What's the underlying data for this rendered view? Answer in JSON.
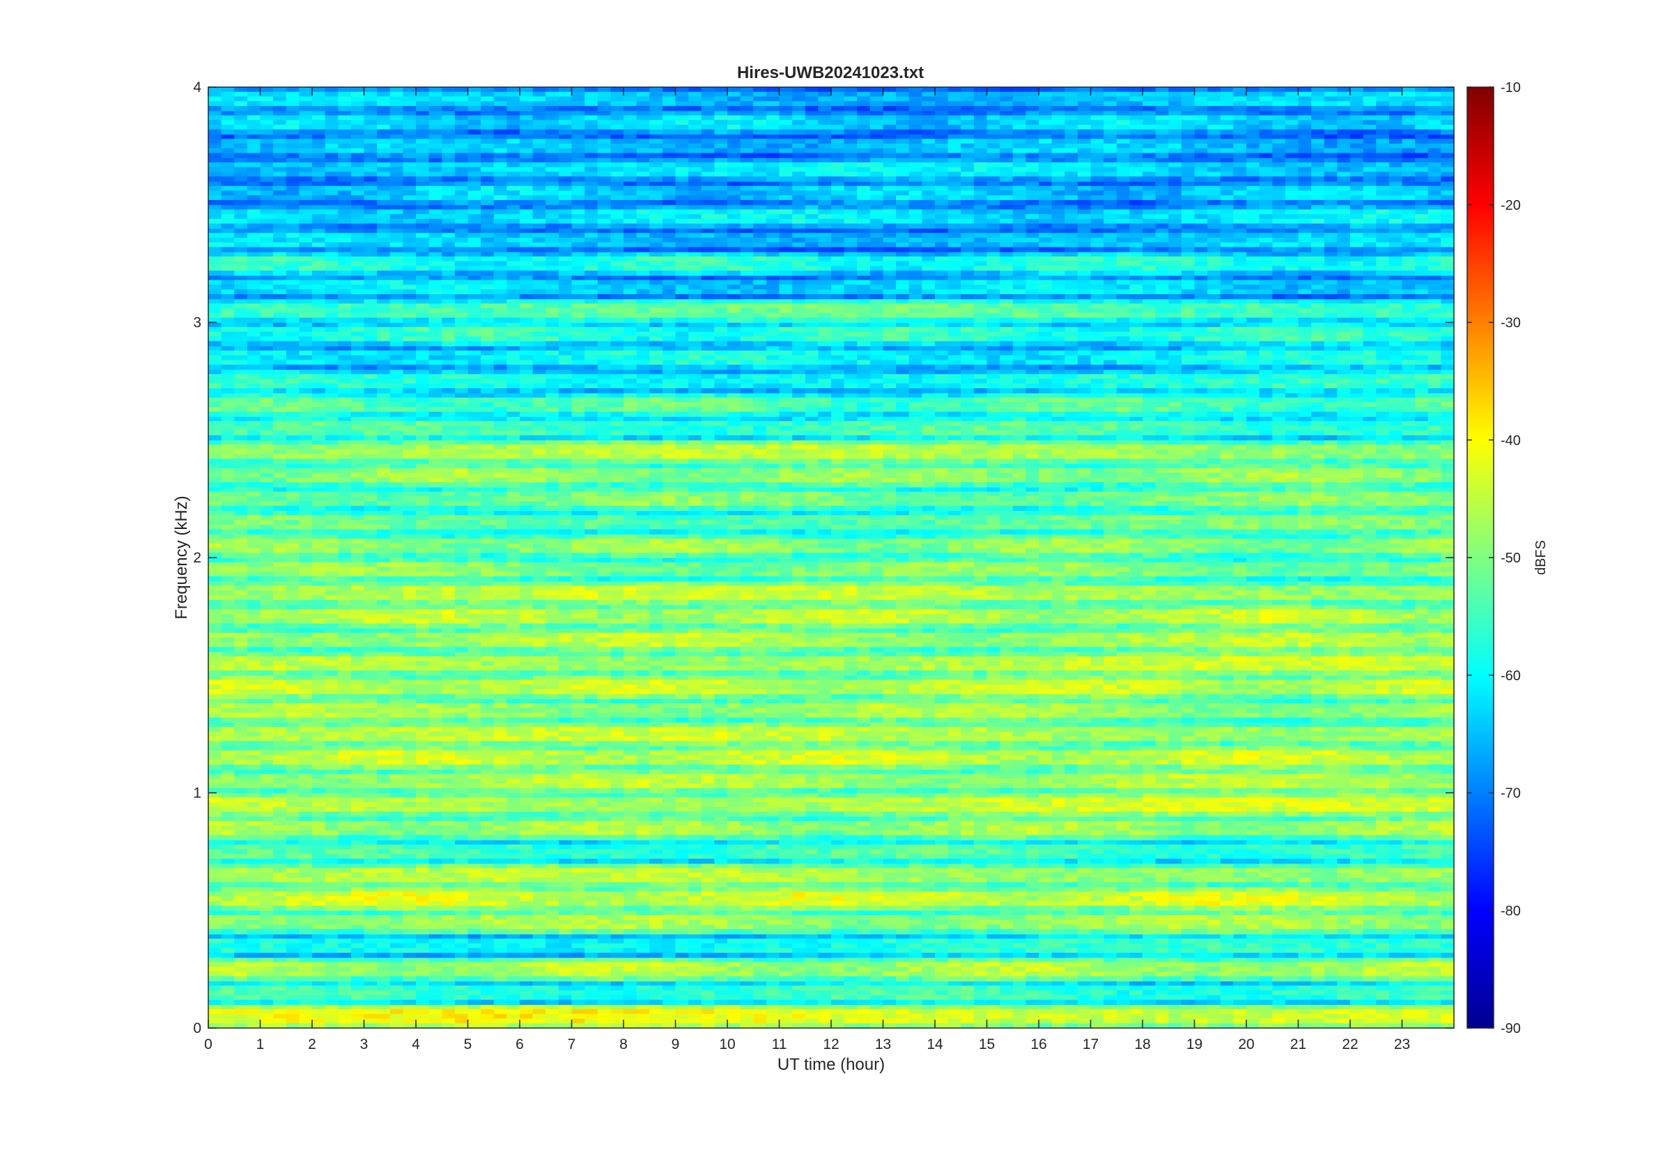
{
  "chart_data": {
    "type": "heatmap",
    "title": "Hires-UWB20241023.txt",
    "xlabel": "UT time (hour)",
    "ylabel": "Frequency (kHz)",
    "xlim": [
      0,
      24
    ],
    "ylim": [
      0,
      4
    ],
    "x_ticks": [
      0,
      1,
      2,
      3,
      4,
      5,
      6,
      7,
      8,
      9,
      10,
      11,
      12,
      13,
      14,
      15,
      16,
      17,
      18,
      19,
      20,
      21,
      22,
      23
    ],
    "y_ticks": [
      0,
      1,
      2,
      3,
      4
    ],
    "colorbar": {
      "label": "dBFS",
      "colormap": "jet",
      "clim": [
        -90,
        -10
      ],
      "ticks": [
        -90,
        -80,
        -70,
        -60,
        -50,
        -40,
        -30,
        -20,
        -10
      ]
    },
    "grid": false,
    "band_levels_dbfs": [
      {
        "freq_khz": 0.05,
        "level": -42
      },
      {
        "freq_khz": 0.15,
        "level": -56
      },
      {
        "freq_khz": 0.25,
        "level": -47
      },
      {
        "freq_khz": 0.35,
        "level": -58
      },
      {
        "freq_khz": 0.45,
        "level": -48
      },
      {
        "freq_khz": 0.55,
        "level": -44
      },
      {
        "freq_khz": 0.65,
        "level": -47
      },
      {
        "freq_khz": 0.75,
        "level": -55
      },
      {
        "freq_khz": 0.85,
        "level": -48
      },
      {
        "freq_khz": 0.95,
        "level": -45
      },
      {
        "freq_khz": 1.05,
        "level": -47
      },
      {
        "freq_khz": 1.15,
        "level": -45
      },
      {
        "freq_khz": 1.25,
        "level": -46
      },
      {
        "freq_khz": 1.35,
        "level": -48
      },
      {
        "freq_khz": 1.45,
        "level": -45
      },
      {
        "freq_khz": 1.55,
        "level": -46
      },
      {
        "freq_khz": 1.65,
        "level": -47
      },
      {
        "freq_khz": 1.75,
        "level": -46
      },
      {
        "freq_khz": 1.85,
        "level": -46
      },
      {
        "freq_khz": 1.95,
        "level": -50
      },
      {
        "freq_khz": 2.05,
        "level": -49
      },
      {
        "freq_khz": 2.15,
        "level": -52
      },
      {
        "freq_khz": 2.25,
        "level": -51
      },
      {
        "freq_khz": 2.35,
        "level": -49
      },
      {
        "freq_khz": 2.45,
        "level": -47
      },
      {
        "freq_khz": 2.55,
        "level": -55
      },
      {
        "freq_khz": 2.65,
        "level": -54
      },
      {
        "freq_khz": 2.75,
        "level": -58
      },
      {
        "freq_khz": 2.85,
        "level": -60
      },
      {
        "freq_khz": 2.95,
        "level": -57
      },
      {
        "freq_khz": 3.05,
        "level": -54
      },
      {
        "freq_khz": 3.15,
        "level": -63
      },
      {
        "freq_khz": 3.25,
        "level": -58
      },
      {
        "freq_khz": 3.35,
        "level": -64
      },
      {
        "freq_khz": 3.45,
        "level": -62
      },
      {
        "freq_khz": 3.55,
        "level": -64
      },
      {
        "freq_khz": 3.65,
        "level": -63
      },
      {
        "freq_khz": 3.75,
        "level": -65
      },
      {
        "freq_khz": 3.85,
        "level": -63
      },
      {
        "freq_khz": 3.95,
        "level": -64
      }
    ]
  }
}
